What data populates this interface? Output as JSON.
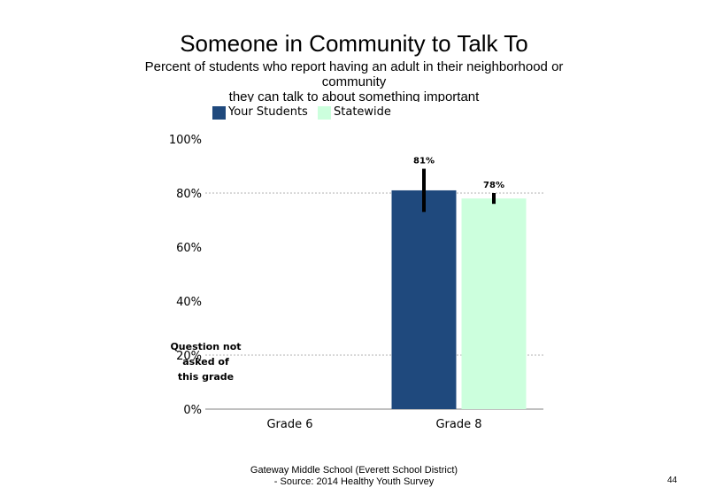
{
  "slide": {
    "title": "Someone in Community to Talk To",
    "subtitle_line1": "Percent of students who report having an adult in their neighborhood or community",
    "subtitle_line2": "they can talk to about something  important",
    "footer_line1": "Gateway Middle School (Everett School District)",
    "footer_line2": "- Source: 2014 Healthy  Youth Survey",
    "page_number": "44"
  },
  "legend": [
    {
      "label": "Your Students",
      "color": "#1f497d"
    },
    {
      "label": "Statewide",
      "color": "#ccffdd"
    }
  ],
  "chart_data": {
    "type": "bar",
    "title": "Someone in Community to Talk To",
    "categories": [
      "Grade 6",
      "Grade 8"
    ],
    "series": [
      {
        "name": "Your Students",
        "color": "#1f497d",
        "values": [
          null,
          81
        ],
        "error_low": [
          null,
          73
        ],
        "error_high": [
          null,
          89
        ],
        "labels": [
          "",
          "81%"
        ]
      },
      {
        "name": "Statewide",
        "color": "#ccffdd",
        "values": [
          null,
          78
        ],
        "error_low": [
          null,
          76
        ],
        "error_high": [
          null,
          80
        ],
        "labels": [
          "",
          "78%"
        ]
      }
    ],
    "ylim": [
      0,
      100
    ],
    "yticks": [
      0,
      20,
      40,
      60,
      80,
      100
    ],
    "ytick_labels": [
      "0%",
      "20%",
      "40%",
      "60%",
      "80%",
      "100%"
    ],
    "gridlines": [
      20,
      80
    ],
    "grid": "dashed",
    "note": {
      "category": "Grade 6",
      "lines": [
        "Question not",
        "asked of",
        "this grade"
      ]
    }
  }
}
